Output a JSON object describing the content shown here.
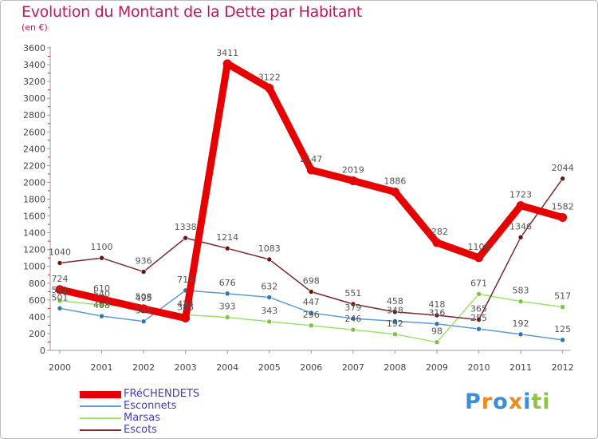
{
  "title": "Evolution du Montant de la Dette par Habitant",
  "subtitle": "(en €)",
  "brand": {
    "letters": [
      "P",
      "r",
      "o",
      "x",
      "i",
      "t",
      "i"
    ],
    "colors": [
      "#3a8fd8",
      "#f08a1e",
      "#3a8fd8",
      "#f08a1e",
      "#3a8fd8",
      "#8cc63f",
      "#8cc63f"
    ]
  },
  "chart_data": {
    "type": "line",
    "title": "Evolution du Montant de la Dette par Habitant",
    "ylabel": "(en €)",
    "xlabel": "",
    "categories": [
      "2000",
      "2001",
      "2002",
      "2003",
      "2004",
      "2005",
      "2006",
      "2007",
      "2008",
      "2009",
      "2010",
      "2011",
      "2012"
    ],
    "ylim": [
      0,
      3600
    ],
    "yticks": [
      0,
      200,
      400,
      600,
      800,
      1000,
      1200,
      1400,
      1600,
      1800,
      2000,
      2200,
      2400,
      2600,
      2800,
      3000,
      3200,
      3400,
      3600
    ],
    "grid": false,
    "legend": "bottom-left",
    "series": [
      {
        "name": "FRéCHENDETS",
        "color": "#e60000",
        "width": 9,
        "dot": "#e60000",
        "values": [
          724,
          610,
          495,
          385,
          3411,
          3122,
          2147,
          2019,
          1886,
          1282,
          1103,
          1723,
          1582
        ]
      },
      {
        "name": "Esconnets",
        "color": "#5b9bd5",
        "width": 1.5,
        "dot": "#2e75b6",
        "values": [
          501,
          408,
          345,
          714,
          676,
          632,
          447,
          379,
          348,
          316,
          255,
          192,
          125
        ]
      },
      {
        "name": "Marsas",
        "color": "#9be36b",
        "width": 1.5,
        "dot": "#7cc242",
        "values": [
          591,
          540,
          508,
          424,
          393,
          343,
          296,
          246,
          192,
          98,
          671,
          583,
          517
        ]
      },
      {
        "name": "Escots",
        "color": "#7a2a2a",
        "width": 1.5,
        "dot": "#6b1414",
        "values": [
          1040,
          1100,
          936,
          1338,
          1214,
          1083,
          698,
          551,
          458,
          418,
          365,
          1346,
          2044
        ]
      }
    ]
  }
}
